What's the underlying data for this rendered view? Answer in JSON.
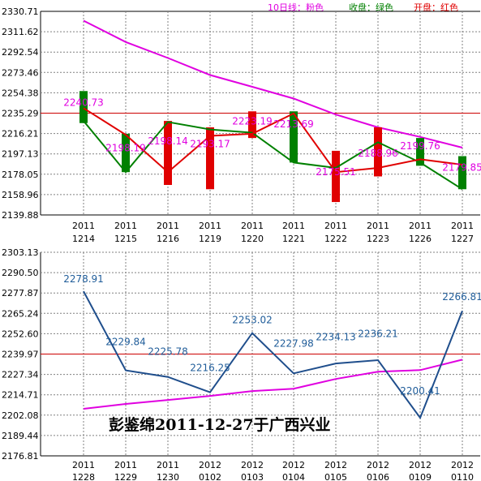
{
  "legend": {
    "ma_label": "10日线：粉色",
    "close_label": "收盘：绿色",
    "open_label": "开盘：红色"
  },
  "caption": "彭鉴绵2011-12-27于广西兴业",
  "colors": {
    "ma": "#e000e0",
    "close": "#008000",
    "open": "#e00000",
    "line": "#1f4e8c",
    "label_blue": "#1f5c99",
    "grid": "#808080",
    "ref_line": "#cc0000"
  },
  "chart_data": [
    {
      "type": "candlestick",
      "title": "",
      "ylim": [
        2139.88,
        2330.71
      ],
      "y_ticks": [
        "2330.71",
        "2311.62",
        "2292.54",
        "2273.46",
        "2254.38",
        "2235.29",
        "2216.21",
        "2197.13",
        "2178.05",
        "2158.96",
        "2139.88"
      ],
      "x_labels": [
        [
          "2011",
          "1214"
        ],
        [
          "2011",
          "1215"
        ],
        [
          "2011",
          "1216"
        ],
        [
          "2011",
          "1219"
        ],
        [
          "2011",
          "1220"
        ],
        [
          "2011",
          "1221"
        ],
        [
          "2011",
          "1222"
        ],
        [
          "2011",
          "1223"
        ],
        [
          "2011",
          "1226"
        ],
        [
          "2011",
          "1227"
        ]
      ],
      "reference_line": 2235.29,
      "candles": [
        {
          "low": 2226,
          "high": 2256,
          "color": "green"
        },
        {
          "low": 2180,
          "high": 2216,
          "color": "green"
        },
        {
          "low": 2168,
          "high": 2228,
          "color": "red"
        },
        {
          "low": 2164,
          "high": 2222,
          "color": "red"
        },
        {
          "low": 2212,
          "high": 2237,
          "color": "red"
        },
        {
          "low": 2189,
          "high": 2237,
          "color": "green"
        },
        {
          "low": 2152,
          "high": 2200,
          "color": "red"
        },
        {
          "low": 2176,
          "high": 2222,
          "color": "red"
        },
        {
          "low": 2186,
          "high": 2212,
          "color": "green"
        },
        {
          "low": 2164,
          "high": 2195,
          "color": "green"
        }
      ],
      "close_line": [
        2228,
        2180,
        2227,
        2220,
        2217,
        2189,
        2184,
        2208,
        2189,
        2164
      ],
      "open_line": [
        2240,
        2215,
        2180,
        2214,
        2216,
        2235,
        2180,
        2184,
        2192,
        2187
      ],
      "ma_line": [
        2322,
        2302,
        2287,
        2271,
        2260,
        2249,
        2234,
        2222,
        2213,
        2203
      ],
      "value_labels": [
        "2240.73",
        "2198.19",
        "2198.14",
        "2193.17",
        "2223.19",
        "2213.69",
        "2175.51",
        "2188.96",
        "2199.76",
        "2179.85"
      ],
      "value_label_y": [
        2240.7,
        2198.2,
        2204.5,
        2202.0,
        2223.2,
        2220.5,
        2175.5,
        2193.0,
        2199.8,
        2179.9
      ]
    },
    {
      "type": "line",
      "title": "",
      "ylim": [
        2176.81,
        2303.13
      ],
      "y_ticks": [
        "2303.13",
        "2290.50",
        "2277.87",
        "2265.24",
        "2252.60",
        "2239.97",
        "2227.34",
        "2214.71",
        "2202.08",
        "2189.44",
        "2176.81"
      ],
      "x_labels": [
        [
          "2011",
          "1228"
        ],
        [
          "2011",
          "1229"
        ],
        [
          "2011",
          "1230"
        ],
        [
          "2012",
          "0102"
        ],
        [
          "2012",
          "0103"
        ],
        [
          "2012",
          "0104"
        ],
        [
          "2012",
          "0105"
        ],
        [
          "2012",
          "0106"
        ],
        [
          "2012",
          "0109"
        ],
        [
          "2012",
          "0110"
        ]
      ],
      "reference_line": 2239.97,
      "series": [
        {
          "values": [
            2278.91,
            2229.84,
            2225.78,
            2216.25,
            2253.02,
            2227.98,
            2234.13,
            2236.21,
            2200.41,
            2266.81
          ]
        },
        {
          "values": [
            2206.0,
            2209.0,
            2211.5,
            2214.0,
            2217.0,
            2218.5,
            2224.5,
            2229.0,
            2230.0,
            2236.5
          ]
        }
      ],
      "value_labels": [
        "2278.91",
        "2229.84",
        "2225.78",
        "2216.25",
        "2253.02",
        "2227.98",
        "2234.13",
        "2236.21",
        "2200.41",
        "2266.81"
      ],
      "value_label_y": [
        2284.5,
        2245.5,
        2239.5,
        2229.5,
        2259.0,
        2244.5,
        2248.5,
        2250.5,
        2215.0,
        2273.5
      ]
    }
  ]
}
